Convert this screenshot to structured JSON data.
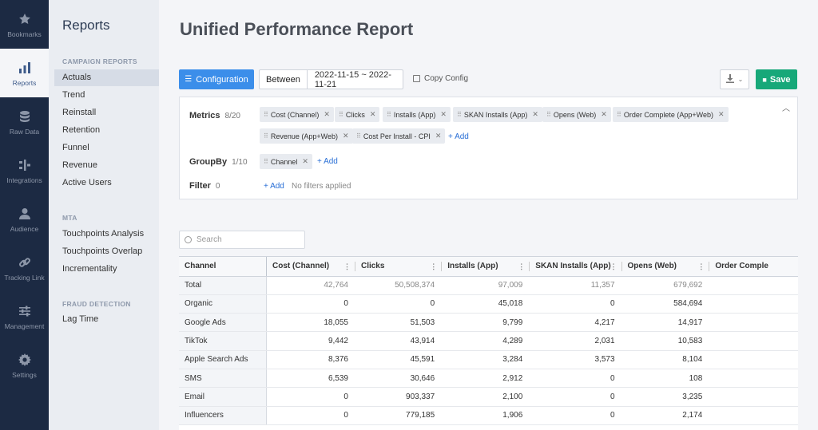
{
  "rail": {
    "items": [
      {
        "label": "Bookmarks",
        "icon": "star-icon"
      },
      {
        "label": "Reports",
        "icon": "bar-chart-icon",
        "active": true
      },
      {
        "label": "Raw Data",
        "icon": "database-icon"
      },
      {
        "label": "Integrations",
        "icon": "integrations-icon"
      },
      {
        "label": "Audience",
        "icon": "person-icon"
      },
      {
        "label": "Tracking Link",
        "icon": "link-icon"
      },
      {
        "label": "Management",
        "icon": "sliders-icon"
      },
      {
        "label": "Settings",
        "icon": "gear-icon"
      }
    ]
  },
  "nav": {
    "title": "Reports",
    "sections": [
      {
        "title": "CAMPAIGN REPORTS",
        "items": [
          "Actuals",
          "Trend",
          "Reinstall",
          "Retention",
          "Funnel",
          "Revenue",
          "Active Users"
        ]
      },
      {
        "title": "MTA",
        "items": [
          "Touchpoints Analysis",
          "Touchpoints Overlap",
          "Incrementality"
        ]
      },
      {
        "title": "FRAUD DETECTION",
        "items": [
          "Lag Time"
        ]
      }
    ],
    "active_item": "Actuals"
  },
  "page": {
    "title": "Unified Performance Report"
  },
  "toolbar": {
    "configuration_label": "Configuration",
    "between_label": "Between",
    "date_range": "2022-11-15 ~ 2022-11-21",
    "copy_config_label": "Copy Config",
    "save_label": "Save"
  },
  "config": {
    "metrics_label": "Metrics",
    "metrics_count": "8/20",
    "metrics": [
      "Cost (Channel)",
      "Clicks",
      "Installs (App)",
      "SKAN Installs (App)",
      "Opens (Web)",
      "Order Complete (App+Web)",
      "Revenue (App+Web)",
      "Cost Per Install - CPI"
    ],
    "groupby_label": "GroupBy",
    "groupby_count": "1/10",
    "groupby": [
      "Channel"
    ],
    "filter_label": "Filter",
    "filter_count": "0",
    "add_label": "+ Add",
    "no_filters": "No filters applied"
  },
  "search": {
    "placeholder": "Search"
  },
  "table": {
    "columns": [
      "Channel",
      "Cost (Channel)",
      "Clicks",
      "Installs (App)",
      "SKAN Installs (App)",
      "Opens (Web)",
      "Order Comple"
    ],
    "rows": [
      [
        "Total",
        "42,764",
        "50,508,374",
        "97,009",
        "11,357",
        "679,692",
        ""
      ],
      [
        "Organic",
        "0",
        "0",
        "45,018",
        "0",
        "584,694",
        ""
      ],
      [
        "Google Ads",
        "18,055",
        "51,503",
        "9,799",
        "4,217",
        "14,917",
        ""
      ],
      [
        "TikTok",
        "9,442",
        "43,914",
        "4,289",
        "2,031",
        "10,583",
        ""
      ],
      [
        "Apple Search Ads",
        "8,376",
        "45,591",
        "3,284",
        "3,573",
        "8,104",
        ""
      ],
      [
        "SMS",
        "6,539",
        "30,646",
        "2,912",
        "0",
        "108",
        ""
      ],
      [
        "Email",
        "0",
        "903,337",
        "2,100",
        "0",
        "3,235",
        ""
      ],
      [
        "Influencers",
        "0",
        "779,185",
        "1,906",
        "0",
        "2,174",
        ""
      ]
    ]
  },
  "colors": {
    "rail_bg": "#1c2a43",
    "primary": "#3b8eea",
    "save": "#17a879"
  }
}
